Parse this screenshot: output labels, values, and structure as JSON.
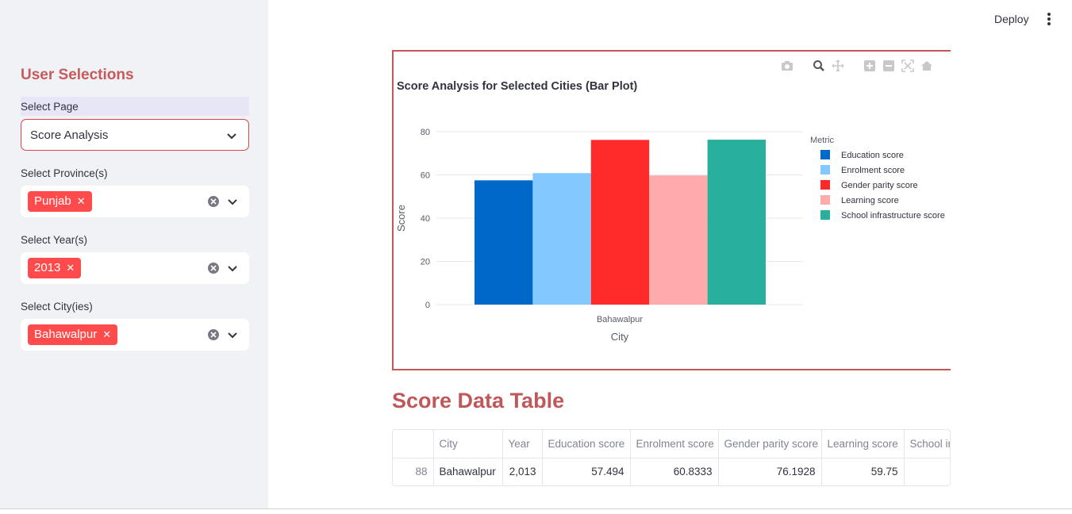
{
  "sidebar": {
    "title": "User Selections",
    "page_select": {
      "label": "Select Page",
      "value": "Score Analysis"
    },
    "province_select": {
      "label": "Select Province(s)",
      "tags": [
        "Punjab"
      ]
    },
    "year_select": {
      "label": "Select Year(s)",
      "tags": [
        "2013"
      ]
    },
    "city_select": {
      "label": "Select City(ies)",
      "tags": [
        "Bahawalpur"
      ]
    }
  },
  "header": {
    "deploy_label": "Deploy"
  },
  "chart_data": {
    "type": "bar",
    "title": "Score Analysis for Selected Cities (Bar Plot)",
    "xlabel": "City",
    "ylabel": "Score",
    "categories": [
      "Bahawalpur"
    ],
    "ylim": [
      0,
      84
    ],
    "yticks": [
      "0",
      "20",
      "40",
      "60",
      "80"
    ],
    "legend_title": "Metric",
    "legend_position": "right",
    "series": [
      {
        "name": "Education score",
        "values": [
          57.494
        ],
        "color": "#0068c9"
      },
      {
        "name": "Enrolment score",
        "values": [
          60.8333
        ],
        "color": "#83c9ff"
      },
      {
        "name": "Gender parity score",
        "values": [
          76.1928
        ],
        "color": "#ff2b2b"
      },
      {
        "name": "Learning score",
        "values": [
          59.75
        ],
        "color": "#ffabab"
      },
      {
        "name": "School infrastructure score",
        "values": [
          76.3
        ],
        "color": "#29b09d"
      }
    ]
  },
  "table": {
    "title": "Score Data Table",
    "columns": [
      "",
      "City",
      "Year",
      "Education score",
      "Enrolment score",
      "Gender parity score",
      "Learning score",
      "School infrastructure score"
    ],
    "rows": [
      [
        "88",
        "Bahawalpur",
        "2,013",
        "57.494",
        "60.8333",
        "76.1928",
        "59.75",
        ""
      ]
    ]
  },
  "colors": {
    "accent": "#ff4b4b",
    "title": "#c0575a",
    "sidebar_bg": "#f0f2f6"
  }
}
